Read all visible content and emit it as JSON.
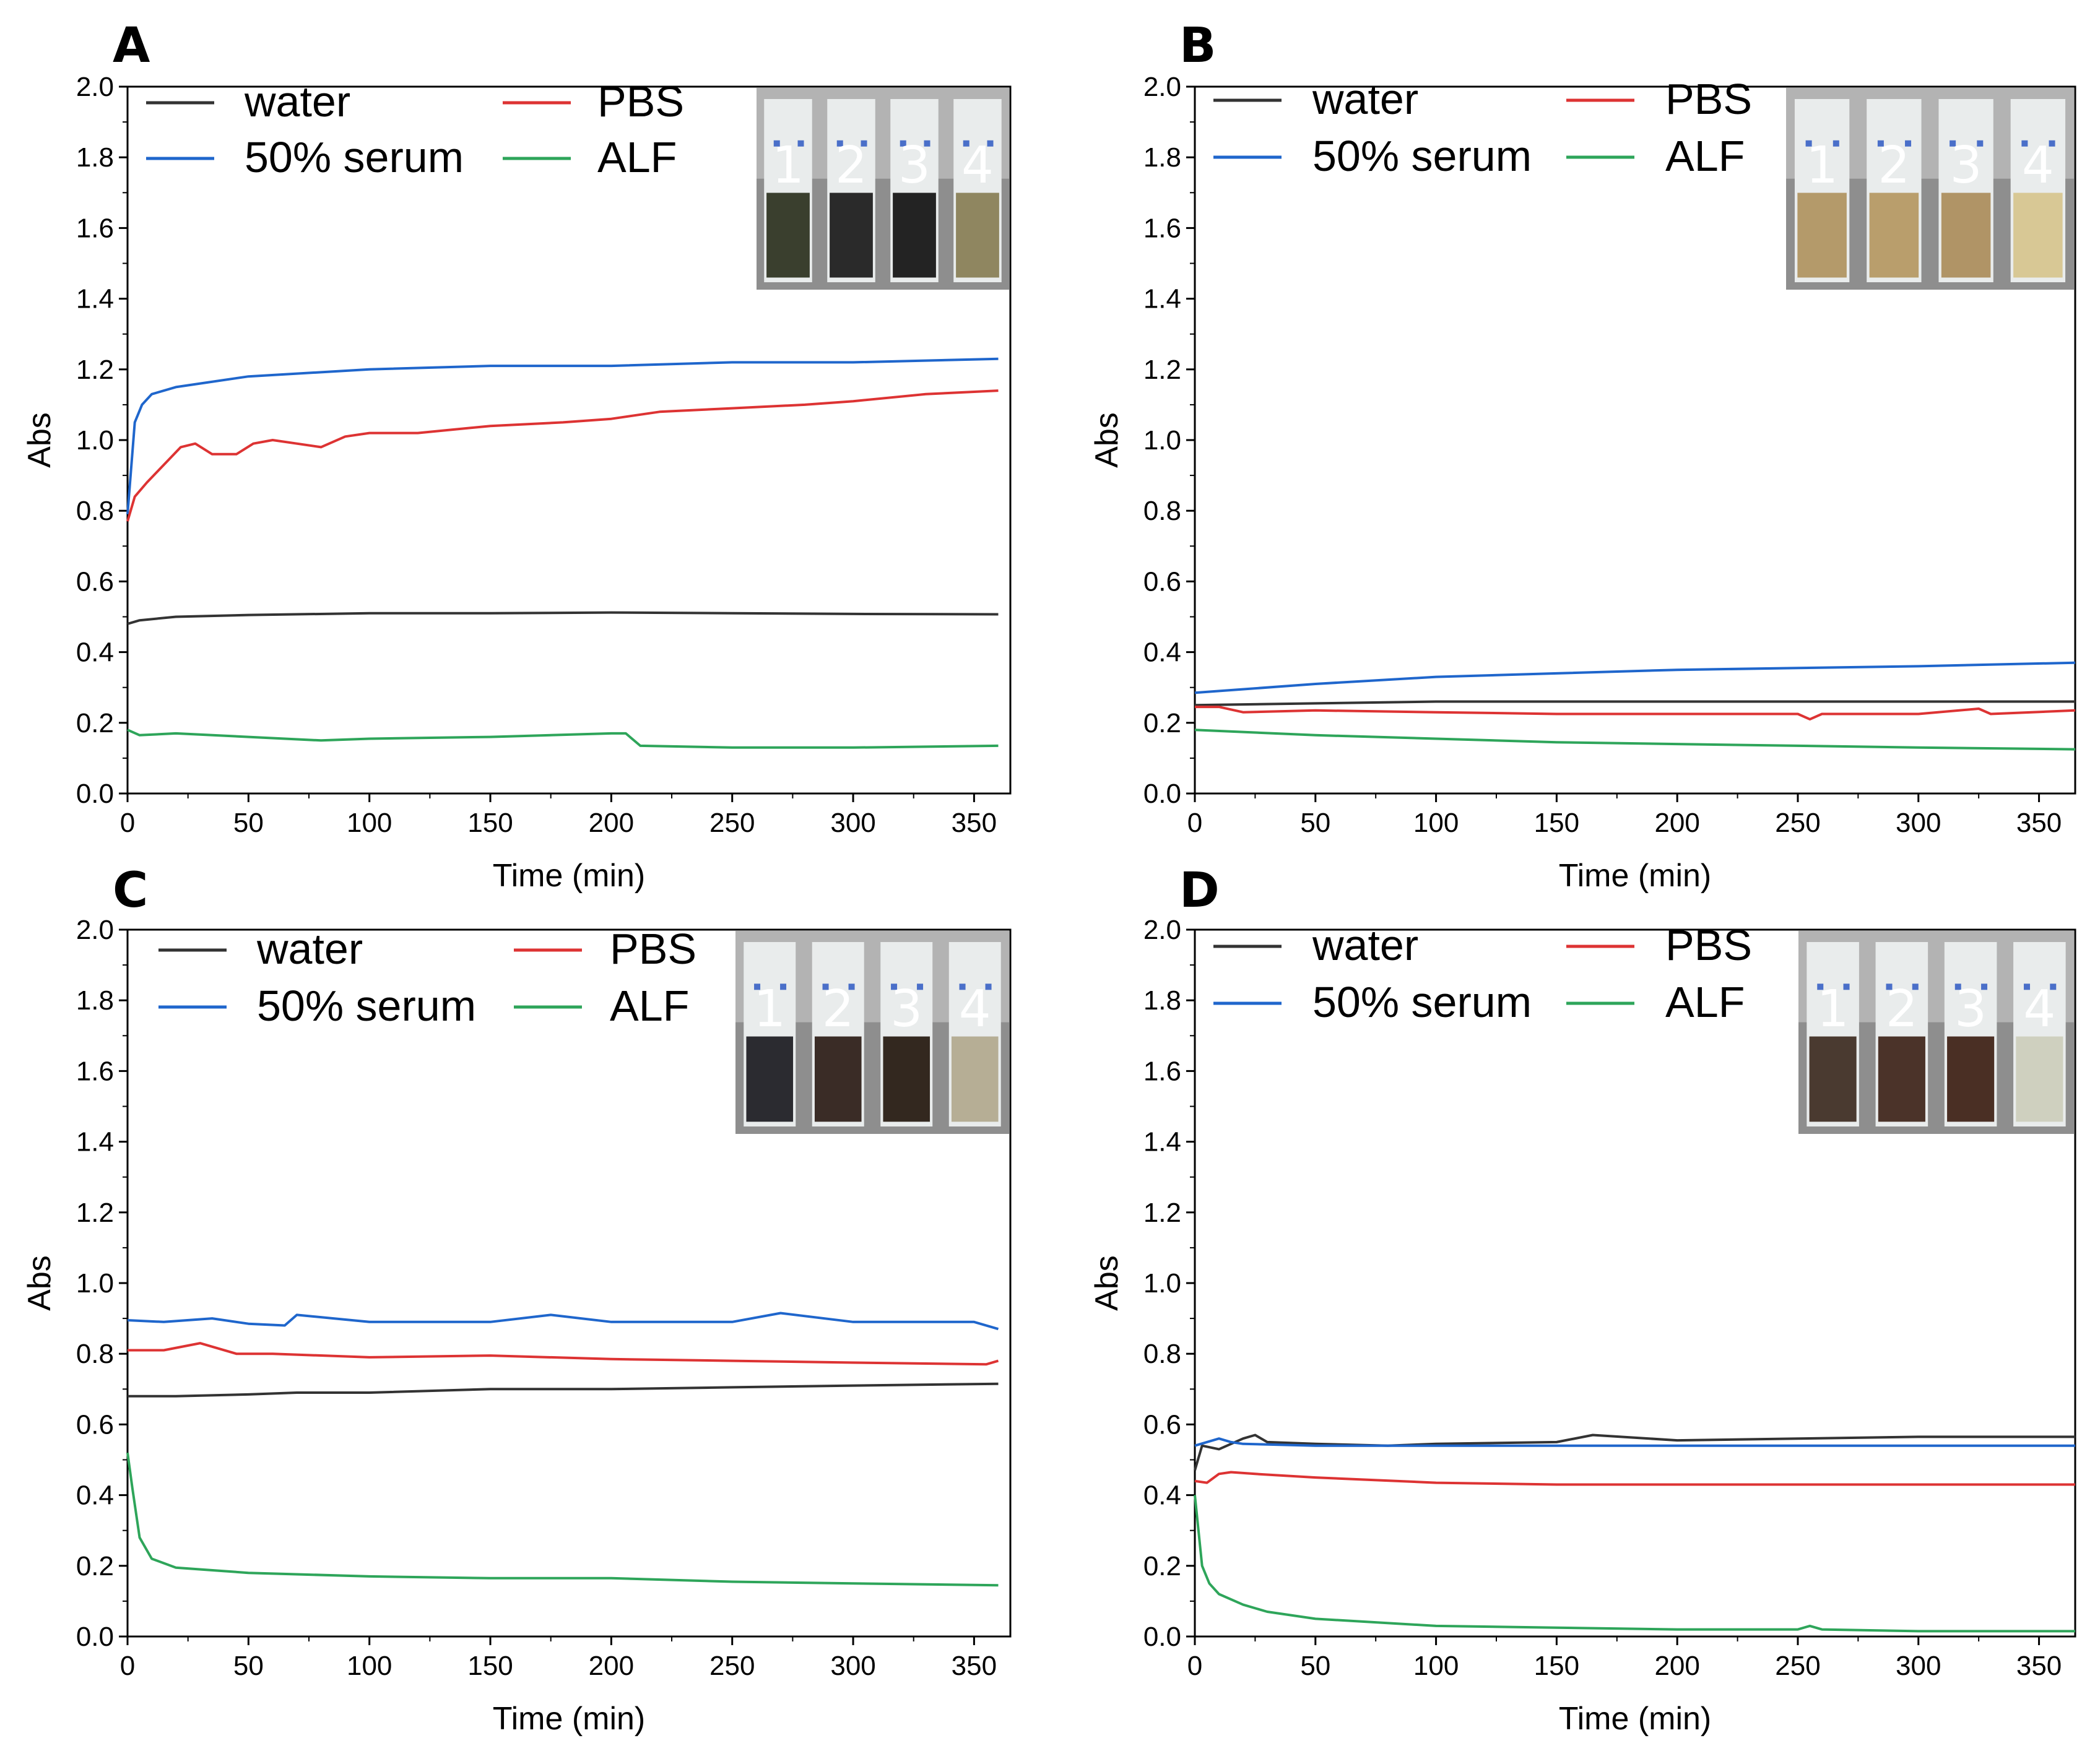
{
  "chart_data": [
    {
      "panel": "A",
      "type": "line",
      "xlabel": "Time (min)",
      "ylabel": "Abs",
      "xlim": [
        0,
        365
      ],
      "ylim": [
        0.0,
        2.0
      ],
      "xticks": [
        "0",
        "50",
        "100",
        "150",
        "200",
        "250",
        "300",
        "350"
      ],
      "yticks": [
        "0.0",
        "0.2",
        "0.4",
        "0.6",
        "0.8",
        "1.0",
        "1.2",
        "1.4",
        "1.6",
        "1.8",
        "2.0"
      ],
      "inset_labels": [
        "1",
        "2",
        "3",
        "4"
      ],
      "inset_colors": [
        "#3a3f2e",
        "#2a2a2a",
        "#232323",
        "#8f8660"
      ],
      "series": [
        {
          "name": "water",
          "color": "#333333",
          "x": [
            0,
            5,
            20,
            50,
            100,
            150,
            200,
            250,
            300,
            360
          ],
          "values": [
            0.48,
            0.49,
            0.5,
            0.505,
            0.51,
            0.51,
            0.512,
            0.51,
            0.508,
            0.507
          ]
        },
        {
          "name": "50% serum",
          "color": "#1f66cc",
          "x": [
            0,
            3,
            6,
            10,
            20,
            30,
            50,
            100,
            150,
            200,
            250,
            300,
            360
          ],
          "values": [
            0.79,
            1.05,
            1.1,
            1.13,
            1.15,
            1.16,
            1.18,
            1.2,
            1.21,
            1.21,
            1.22,
            1.22,
            1.23
          ]
        },
        {
          "name": "PBS",
          "color": "#dd3333",
          "x": [
            0,
            3,
            8,
            15,
            22,
            28,
            35,
            45,
            52,
            60,
            70,
            80,
            90,
            100,
            120,
            150,
            180,
            200,
            220,
            250,
            280,
            300,
            330,
            360
          ],
          "values": [
            0.77,
            0.84,
            0.88,
            0.93,
            0.98,
            0.99,
            0.96,
            0.96,
            0.99,
            1.0,
            0.99,
            0.98,
            1.01,
            1.02,
            1.02,
            1.04,
            1.05,
            1.06,
            1.08,
            1.09,
            1.1,
            1.11,
            1.13,
            1.14
          ]
        },
        {
          "name": "ALF",
          "color": "#2ea55a",
          "x": [
            0,
            5,
            20,
            50,
            80,
            100,
            150,
            200,
            206,
            212,
            250,
            300,
            360
          ],
          "values": [
            0.18,
            0.165,
            0.17,
            0.16,
            0.15,
            0.155,
            0.16,
            0.17,
            0.17,
            0.135,
            0.13,
            0.13,
            0.135
          ]
        }
      ]
    },
    {
      "panel": "B",
      "type": "line",
      "xlabel": "Time (min)",
      "ylabel": "Abs",
      "xlim": [
        0,
        365
      ],
      "ylim": [
        0.0,
        2.0
      ],
      "xticks": [
        "0",
        "50",
        "100",
        "150",
        "200",
        "250",
        "300",
        "350"
      ],
      "yticks": [
        "0.0",
        "0.2",
        "0.4",
        "0.6",
        "0.8",
        "1.0",
        "1.2",
        "1.4",
        "1.6",
        "1.8",
        "2.0"
      ],
      "inset_labels": [
        "1",
        "2",
        "3",
        "4"
      ],
      "inset_colors": [
        "#b49a6a",
        "#b99e6c",
        "#b09466",
        "#d8c895"
      ],
      "series": [
        {
          "name": "water",
          "color": "#333333",
          "x": [
            0,
            50,
            100,
            150,
            200,
            250,
            300,
            365
          ],
          "values": [
            0.25,
            0.255,
            0.26,
            0.26,
            0.26,
            0.26,
            0.26,
            0.26
          ]
        },
        {
          "name": "50% serum",
          "color": "#1f66cc",
          "x": [
            0,
            50,
            100,
            150,
            200,
            250,
            300,
            365
          ],
          "values": [
            0.285,
            0.31,
            0.33,
            0.34,
            0.35,
            0.355,
            0.36,
            0.37
          ]
        },
        {
          "name": "PBS",
          "color": "#dd3333",
          "x": [
            0,
            10,
            20,
            50,
            100,
            150,
            200,
            250,
            255,
            260,
            300,
            325,
            330,
            365
          ],
          "values": [
            0.245,
            0.245,
            0.23,
            0.235,
            0.23,
            0.225,
            0.225,
            0.225,
            0.21,
            0.225,
            0.225,
            0.24,
            0.225,
            0.235
          ]
        },
        {
          "name": "ALF",
          "color": "#2ea55a",
          "x": [
            0,
            50,
            100,
            150,
            200,
            250,
            300,
            365
          ],
          "values": [
            0.18,
            0.165,
            0.155,
            0.145,
            0.14,
            0.135,
            0.13,
            0.125
          ]
        }
      ]
    },
    {
      "panel": "C",
      "type": "line",
      "xlabel": "Time (min)",
      "ylabel": "Abs",
      "xlim": [
        0,
        365
      ],
      "ylim": [
        0.0,
        2.0
      ],
      "xticks": [
        "0",
        "50",
        "100",
        "150",
        "200",
        "250",
        "300",
        "350"
      ],
      "yticks": [
        "0.0",
        "0.2",
        "0.4",
        "0.6",
        "0.8",
        "1.0",
        "1.2",
        "1.4",
        "1.6",
        "1.8",
        "2.0"
      ],
      "inset_labels": [
        "1",
        "2",
        "3",
        "4"
      ],
      "inset_colors": [
        "#2b2b30",
        "#3a2c26",
        "#33281f",
        "#b6ae95"
      ],
      "series": [
        {
          "name": "water",
          "color": "#333333",
          "x": [
            0,
            20,
            50,
            70,
            100,
            150,
            200,
            250,
            300,
            360
          ],
          "values": [
            0.68,
            0.68,
            0.685,
            0.69,
            0.69,
            0.7,
            0.7,
            0.705,
            0.71,
            0.715
          ]
        },
        {
          "name": "50% serum",
          "color": "#1f66cc",
          "x": [
            0,
            15,
            35,
            50,
            65,
            70,
            100,
            150,
            175,
            200,
            250,
            270,
            300,
            350,
            360
          ],
          "values": [
            0.895,
            0.89,
            0.9,
            0.885,
            0.88,
            0.91,
            0.89,
            0.89,
            0.91,
            0.89,
            0.89,
            0.915,
            0.89,
            0.89,
            0.87
          ]
        },
        {
          "name": "PBS",
          "color": "#dd3333",
          "x": [
            0,
            15,
            30,
            45,
            60,
            100,
            150,
            200,
            250,
            300,
            355,
            360
          ],
          "values": [
            0.81,
            0.81,
            0.83,
            0.8,
            0.8,
            0.79,
            0.795,
            0.785,
            0.78,
            0.775,
            0.77,
            0.78
          ]
        },
        {
          "name": "ALF",
          "color": "#2ea55a",
          "x": [
            0,
            2,
            5,
            10,
            20,
            50,
            100,
            150,
            200,
            250,
            300,
            360
          ],
          "values": [
            0.52,
            0.42,
            0.28,
            0.22,
            0.195,
            0.18,
            0.17,
            0.165,
            0.165,
            0.155,
            0.15,
            0.145
          ]
        }
      ]
    },
    {
      "panel": "D",
      "type": "line",
      "xlabel": "Time (min)",
      "ylabel": "Abs",
      "xlim": [
        0,
        365
      ],
      "ylim": [
        0.0,
        2.0
      ],
      "xticks": [
        "0",
        "50",
        "100",
        "150",
        "200",
        "250",
        "300",
        "350"
      ],
      "yticks": [
        "0.0",
        "0.2",
        "0.4",
        "0.6",
        "0.8",
        "1.0",
        "1.2",
        "1.4",
        "1.6",
        "1.8",
        "2.0"
      ],
      "inset_labels": [
        "1",
        "2",
        "3",
        "4"
      ],
      "inset_colors": [
        "#4a3a30",
        "#4b3329",
        "#4a2f24",
        "#cfd0bf"
      ],
      "series": [
        {
          "name": "water",
          "color": "#333333",
          "x": [
            0,
            3,
            10,
            20,
            25,
            30,
            50,
            80,
            100,
            150,
            165,
            200,
            250,
            300,
            365
          ],
          "values": [
            0.47,
            0.54,
            0.53,
            0.56,
            0.57,
            0.55,
            0.545,
            0.54,
            0.545,
            0.55,
            0.57,
            0.555,
            0.56,
            0.565,
            0.565
          ]
        },
        {
          "name": "50% serum",
          "color": "#1f66cc",
          "x": [
            0,
            5,
            10,
            15,
            20,
            50,
            100,
            150,
            200,
            250,
            300,
            365
          ],
          "values": [
            0.54,
            0.55,
            0.56,
            0.55,
            0.545,
            0.54,
            0.54,
            0.54,
            0.54,
            0.54,
            0.54,
            0.54
          ]
        },
        {
          "name": "PBS",
          "color": "#dd3333",
          "x": [
            0,
            5,
            10,
            15,
            25,
            50,
            100,
            150,
            200,
            250,
            300,
            365
          ],
          "values": [
            0.44,
            0.435,
            0.46,
            0.465,
            0.46,
            0.45,
            0.435,
            0.43,
            0.43,
            0.43,
            0.43,
            0.43
          ]
        },
        {
          "name": "ALF",
          "color": "#2ea55a",
          "x": [
            0,
            3,
            6,
            10,
            20,
            30,
            50,
            100,
            150,
            200,
            250,
            255,
            260,
            300,
            365
          ],
          "values": [
            0.4,
            0.2,
            0.15,
            0.12,
            0.09,
            0.07,
            0.05,
            0.03,
            0.025,
            0.02,
            0.02,
            0.03,
            0.02,
            0.015,
            0.015
          ]
        }
      ]
    }
  ]
}
